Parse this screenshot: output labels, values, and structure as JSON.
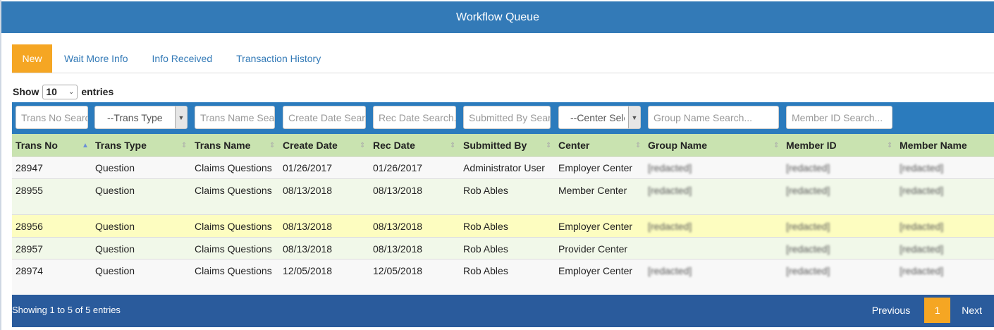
{
  "header": {
    "title": "Workflow Queue"
  },
  "tabs": [
    {
      "label": "New",
      "active": true
    },
    {
      "label": "Wait More Info",
      "active": false
    },
    {
      "label": "Info Received",
      "active": false
    },
    {
      "label": "Transaction History",
      "active": false
    }
  ],
  "length_menu": {
    "show_label": "Show",
    "value": "10",
    "entries_label": "entries"
  },
  "filters": {
    "trans_no": "Trans No Search...",
    "trans_type": "--Trans Type",
    "trans_name": "Trans Name Search...",
    "create_date": "Create Date Search...",
    "rec_date": "Rec Date Search...",
    "submitted_by": "Submitted By Search...",
    "center": "--Center Select--",
    "group_name": "Group Name Search...",
    "member_id": "Member ID Search..."
  },
  "columns": [
    "Trans No",
    "Trans Type",
    "Trans Name",
    "Create Date",
    "Rec Date",
    "Submitted By",
    "Center",
    "Group Name",
    "Member ID",
    "Member Name"
  ],
  "rows": [
    {
      "trans_no": "28947",
      "trans_type": "Question",
      "trans_name": "Claims Questions",
      "create_date": "01/26/2017",
      "rec_date": "01/26/2017",
      "submitted_by": "Administrator User",
      "center": "Employer Center",
      "group_name": "[redacted]",
      "member_id": "[redacted]",
      "member_name": "[redacted]"
    },
    {
      "trans_no": "28955",
      "trans_type": "Question",
      "trans_name": "Claims Questions",
      "create_date": "08/13/2018",
      "rec_date": "08/13/2018",
      "submitted_by": "Rob Ables",
      "center": "Member Center",
      "group_name": "[redacted]",
      "member_id": "[redacted]",
      "member_name": "[redacted]"
    },
    {
      "trans_no": "28956",
      "trans_type": "Question",
      "trans_name": "Claims Questions",
      "create_date": "08/13/2018",
      "rec_date": "08/13/2018",
      "submitted_by": "Rob Ables",
      "center": "Employer Center",
      "group_name": "[redacted]",
      "member_id": "[redacted]",
      "member_name": "[redacted]"
    },
    {
      "trans_no": "28957",
      "trans_type": "Question",
      "trans_name": "Claims Questions",
      "create_date": "08/13/2018",
      "rec_date": "08/13/2018",
      "submitted_by": "Rob Ables",
      "center": "Provider Center",
      "group_name": "",
      "member_id": "[redacted]",
      "member_name": "[redacted]"
    },
    {
      "trans_no": "28974",
      "trans_type": "Question",
      "trans_name": "Claims Questions",
      "create_date": "12/05/2018",
      "rec_date": "12/05/2018",
      "submitted_by": "Rob Ables",
      "center": "Employer Center",
      "group_name": "[redacted]",
      "member_id": "[redacted]",
      "member_name": "[redacted]"
    }
  ],
  "footer": {
    "info": "Showing 1 to 5 of 5 entries",
    "previous_label": "Previous",
    "current_page": "1",
    "next_label": "Next"
  },
  "colors": {
    "header": "#337ab7",
    "active_tab": "#f5a623",
    "filter_bar": "#2b7bbd",
    "table_head": "#c9e3b0",
    "row_alt": "#f1f8e9",
    "row_highlight": "#fdfdc0",
    "footer": "#2a5b9c"
  }
}
